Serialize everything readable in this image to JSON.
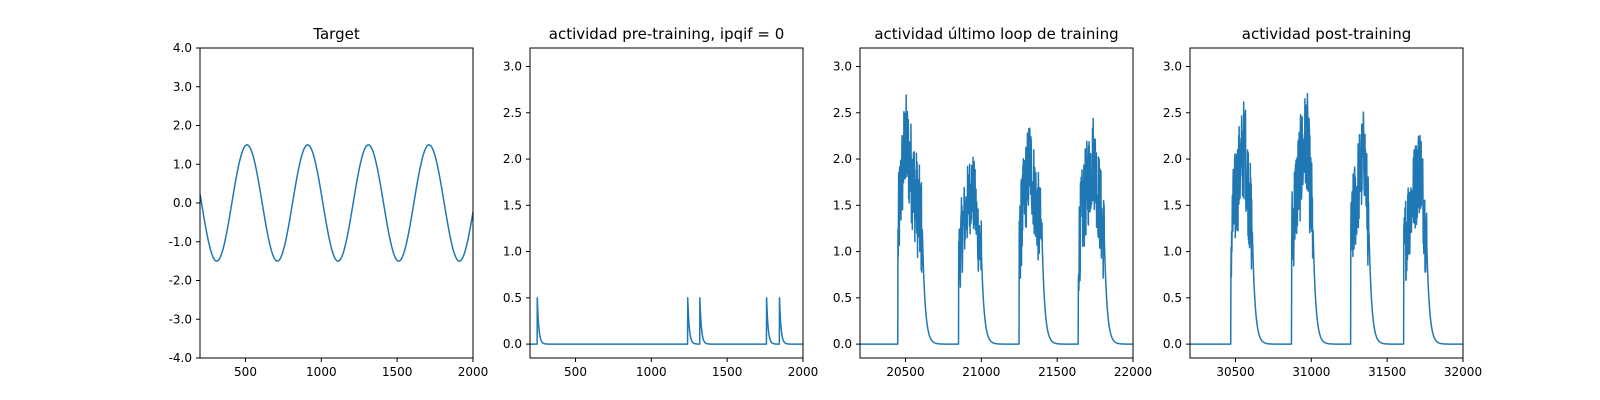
{
  "chart_data": [
    {
      "type": "line",
      "title": "Target",
      "xlim": [
        200,
        2000
      ],
      "ylim": [
        -4,
        4
      ],
      "xticks": [
        500,
        1000,
        1500,
        2000
      ],
      "yticks": [
        -4,
        -3,
        -2,
        -1,
        0,
        1,
        2,
        3,
        4
      ],
      "series_color": "#1f77b4",
      "series": [
        {
          "function": "sine",
          "amplitude": 1.5,
          "period": 400,
          "peak_at": 510,
          "x_start": 200,
          "x_end": 2000
        }
      ]
    },
    {
      "type": "line",
      "title": "actividad pre-training, ipqif = 0",
      "xlim": [
        200,
        2000
      ],
      "ylim": [
        -0.15,
        3.2
      ],
      "xticks": [
        500,
        1000,
        1500,
        2000
      ],
      "yticks": [
        0.0,
        0.5,
        1.0,
        1.5,
        2.0,
        2.5,
        3.0
      ],
      "series_color": "#1f77b4",
      "series": [
        {
          "x_start": 200,
          "x_end": 2000,
          "spikes": [
            {
              "x": 248,
              "height": 0.5
            },
            {
              "x": 1240,
              "height": 0.5
            },
            {
              "x": 1320,
              "height": 0.5
            },
            {
              "x": 1760,
              "height": 0.5
            },
            {
              "x": 1845,
              "height": 0.5
            }
          ]
        }
      ]
    },
    {
      "type": "line",
      "title": "actividad último loop de training",
      "xlim": [
        20200,
        22000
      ],
      "ylim": [
        -0.15,
        3.2
      ],
      "xticks": [
        20500,
        21000,
        21500,
        22000
      ],
      "yticks": [
        0.0,
        0.5,
        1.0,
        1.5,
        2.0,
        2.5,
        3.0
      ],
      "series_color": "#1f77b4",
      "series": [
        {
          "x_start": 20200,
          "x_end": 22000,
          "bursts": [
            {
              "start": 20450,
              "end": 20610,
              "peak_x": 20500,
              "peak": 2.5
            },
            {
              "start": 20850,
              "end": 21000,
              "peak_x": 20940,
              "peak": 1.95
            },
            {
              "start": 21250,
              "end": 21400,
              "peak_x": 21320,
              "peak": 2.25
            },
            {
              "start": 21640,
              "end": 21810,
              "peak_x": 21740,
              "peak": 2.3
            }
          ]
        }
      ]
    },
    {
      "type": "line",
      "title": "actividad post-training",
      "xlim": [
        30200,
        32000
      ],
      "ylim": [
        -0.15,
        3.2
      ],
      "xticks": [
        30500,
        31000,
        31500,
        32000
      ],
      "yticks": [
        0.0,
        0.5,
        1.0,
        1.5,
        2.0,
        2.5,
        3.0
      ],
      "series_color": "#1f77b4",
      "series": [
        {
          "x_start": 30200,
          "x_end": 32000,
          "bursts": [
            {
              "start": 30470,
              "end": 30610,
              "peak_x": 30560,
              "peak": 2.45
            },
            {
              "start": 30870,
              "end": 31010,
              "peak_x": 30970,
              "peak": 2.55
            },
            {
              "start": 31260,
              "end": 31380,
              "peak_x": 31350,
              "peak": 2.35
            },
            {
              "start": 31610,
              "end": 31760,
              "peak_x": 31720,
              "peak": 2.2
            }
          ]
        }
      ]
    }
  ]
}
